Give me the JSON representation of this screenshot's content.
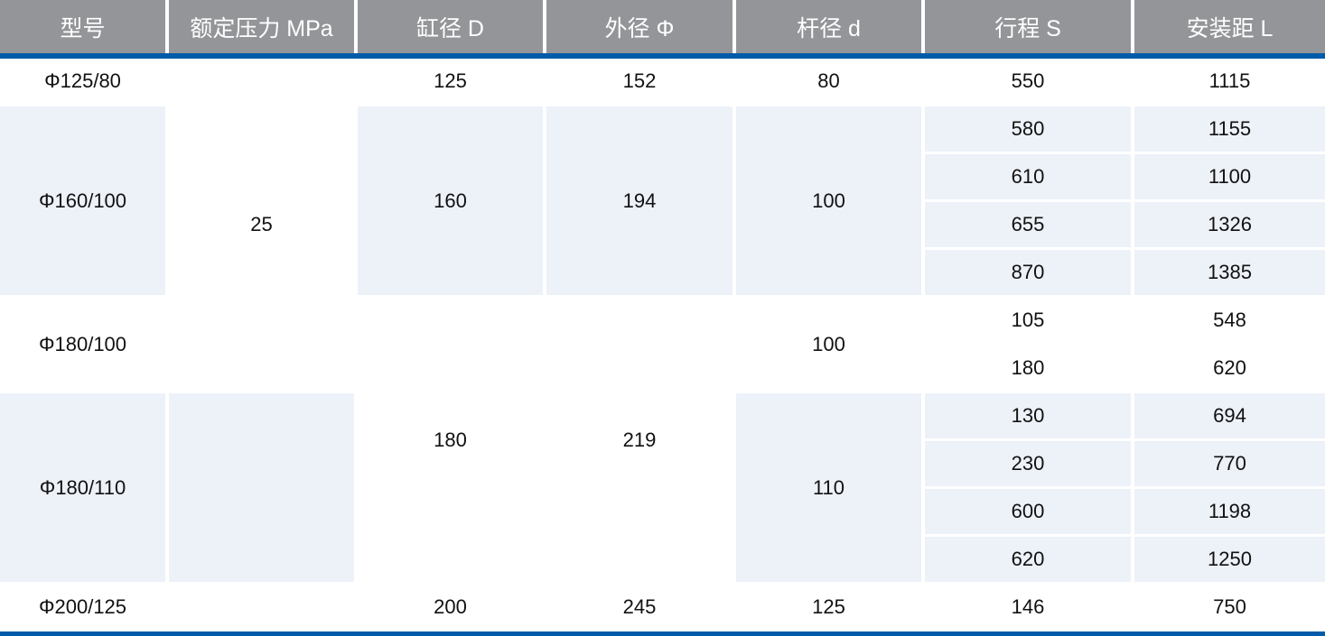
{
  "colors": {
    "header_bg": "#939598",
    "accent_line": "#005BAA",
    "shade": "#EDF1F8"
  },
  "headers": [
    "型号",
    "额定压力 MPa",
    "缸径 D",
    "外径 Φ",
    "杆径 d",
    "行程 S",
    "安装距 L"
  ],
  "pressure": "25",
  "groups": [
    {
      "model": "Φ125/80",
      "bore": "125",
      "outer": "152",
      "rod": "80",
      "rows": [
        {
          "stroke": "550",
          "dist": "1115"
        }
      ]
    },
    {
      "model": "Φ160/100",
      "bore": "160",
      "outer": "194",
      "rod": "100",
      "rows": [
        {
          "stroke": "580",
          "dist": "1155"
        },
        {
          "stroke": "610",
          "dist": "1100"
        },
        {
          "stroke": "655",
          "dist": "1326"
        },
        {
          "stroke": "870",
          "dist": "1385"
        }
      ]
    },
    {
      "model": "Φ180/100",
      "bore": "180",
      "outer": "219",
      "rod": "100",
      "rows": [
        {
          "stroke": "105",
          "dist": "548"
        },
        {
          "stroke": "180",
          "dist": "620"
        }
      ]
    },
    {
      "model": "Φ180/110",
      "rod": "110",
      "rows": [
        {
          "stroke": "130",
          "dist": "694"
        },
        {
          "stroke": "230",
          "dist": "770"
        },
        {
          "stroke": "600",
          "dist": "1198"
        },
        {
          "stroke": "620",
          "dist": "1250"
        }
      ]
    },
    {
      "model": "Φ200/125",
      "bore": "200",
      "outer": "245",
      "rod": "125",
      "rows": [
        {
          "stroke": "146",
          "dist": "750"
        }
      ]
    }
  ]
}
